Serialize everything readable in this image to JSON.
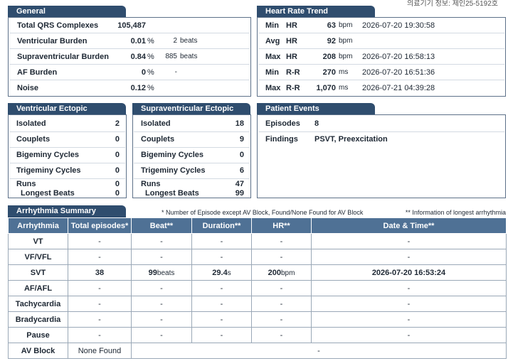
{
  "header_note": "의료기기 정보: 제인25-5192호",
  "general": {
    "title": "General",
    "rows": [
      {
        "label": "Total QRS Complexes",
        "value": "105,487"
      },
      {
        "label": "Ventricular Burden",
        "value": "0.01",
        "unit": "%",
        "count": "2",
        "count_unit": "beats"
      },
      {
        "label": "Supraventricular Burden",
        "value": "0.84",
        "unit": "%",
        "count": "885",
        "count_unit": "beats"
      },
      {
        "label": "AF Burden",
        "value": "0",
        "unit": "%",
        "count": "-"
      },
      {
        "label": "Noise",
        "value": "0.12",
        "unit": "%"
      }
    ]
  },
  "heart_rate_trend": {
    "title": "Heart Rate Trend",
    "rows": [
      {
        "stat": "Min",
        "metric": "HR",
        "value": "63",
        "unit": "bpm",
        "time": "2026-07-20 19:30:58"
      },
      {
        "stat": "Avg",
        "metric": "HR",
        "value": "92",
        "unit": "bpm"
      },
      {
        "stat": "Max",
        "metric": "HR",
        "value": "208",
        "unit": "bpm",
        "time": "2026-07-20 16:58:13"
      },
      {
        "stat": "Min",
        "metric": "R-R",
        "value": "270",
        "unit": "ms",
        "time": "2026-07-20 16:51:36"
      },
      {
        "stat": "Max",
        "metric": "R-R",
        "value": "1,070",
        "unit": "ms",
        "time": "2026-07-21 04:39:28"
      }
    ]
  },
  "ventricular_ectopic": {
    "title": "Ventricular Ectopic",
    "rows": [
      {
        "label": "Isolated",
        "value": "2"
      },
      {
        "label": "Couplets",
        "value": "0"
      },
      {
        "label": "Bigeminy Cycles",
        "value": "0"
      },
      {
        "label": "Trigeminy Cycles",
        "value": "0"
      },
      {
        "label": "Runs",
        "value": "0"
      },
      {
        "label": "Longest Beats",
        "value": "0"
      }
    ]
  },
  "supraventricular_ectopic": {
    "title": "Supraventricular Ectopic",
    "rows": [
      {
        "label": "Isolated",
        "value": "18"
      },
      {
        "label": "Couplets",
        "value": "9"
      },
      {
        "label": "Bigeminy Cycles",
        "value": "0"
      },
      {
        "label": "Trigeminy Cycles",
        "value": "6"
      },
      {
        "label": "Runs",
        "value": "47"
      },
      {
        "label": "Longest Beats",
        "value": "99"
      }
    ]
  },
  "patient_events": {
    "title": "Patient Events",
    "rows": [
      {
        "label": "Episodes",
        "value": "8"
      },
      {
        "label": "Findings",
        "value": "PSVT, Preexcitation"
      }
    ]
  },
  "arrhythmia_summary": {
    "title": "Arrhythmia Summary",
    "note_episodes": "* Number of Episode except AV Block, Found/None Found for AV Block",
    "note_longest": "** Information of longest arrhythmia",
    "columns": [
      "Arrhythmia",
      "Total episodes*",
      "Beat**",
      "Duration**",
      "HR**",
      "Date & Time**"
    ],
    "rows": [
      {
        "name": "VT",
        "cells": [
          "-",
          "-",
          "-",
          "-",
          "-"
        ]
      },
      {
        "name": "VF/VFL",
        "cells": [
          "-",
          "-",
          "-",
          "-",
          "-"
        ]
      },
      {
        "name": "SVT",
        "cells": [
          "38",
          {
            "value": "99",
            "unit": "beats"
          },
          {
            "value": "29.4",
            "unit": "s"
          },
          {
            "value": "200",
            "unit": "bpm"
          },
          "2026-07-20 16:53:24"
        ]
      },
      {
        "name": "AF/AFL",
        "cells": [
          "-",
          "-",
          "-",
          "-",
          "-"
        ]
      },
      {
        "name": "Tachycardia",
        "cells": [
          "-",
          "-",
          "-",
          "-",
          "-"
        ]
      },
      {
        "name": "Bradycardia",
        "cells": [
          "-",
          "-",
          "-",
          "-",
          "-"
        ]
      },
      {
        "name": "Pause",
        "cells": [
          "-",
          "-",
          "-",
          "-",
          "-"
        ]
      },
      {
        "name": "AV Block",
        "cells": [
          "None Found",
          "-"
        ]
      }
    ]
  }
}
